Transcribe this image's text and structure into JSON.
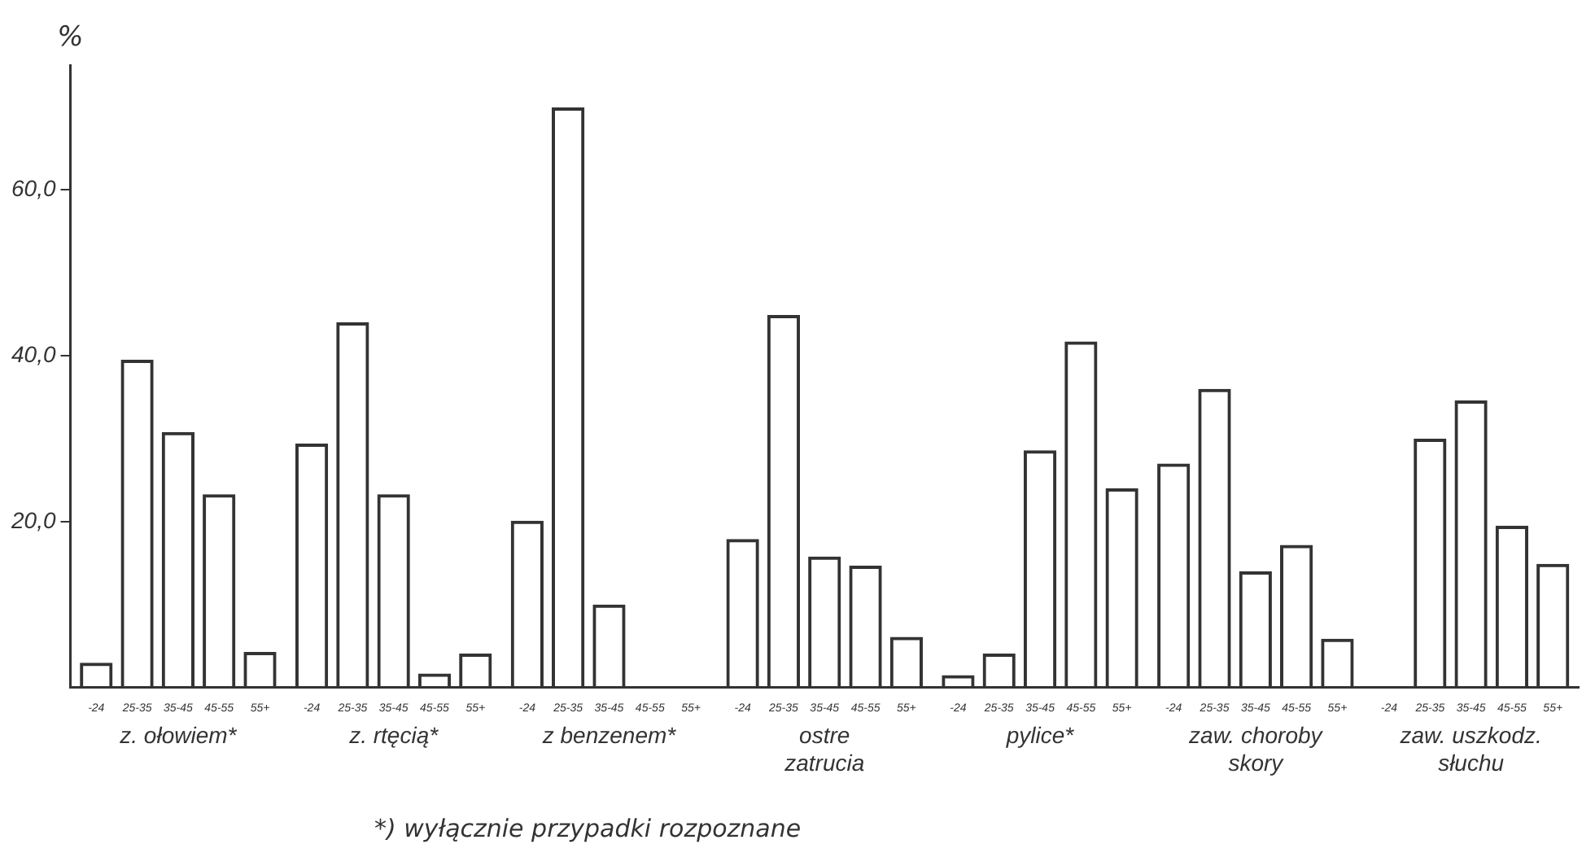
{
  "chart_data": {
    "type": "bar",
    "ylabel": "%",
    "categories": [
      "z. ołowiem*",
      "z. rtęcią*",
      "z benzenem*",
      "ostre zatrucia",
      "pylice*",
      "zaw. choroby skory",
      "zaw. uszkodz. słuchu"
    ],
    "series": [
      {
        "name": "-24",
        "color": "#333333",
        "values": [
          3.0,
          29.4,
          20.1,
          17.9,
          1.5,
          27.0,
          0
        ]
      },
      {
        "name": "25-35",
        "color": "#333333",
        "values": [
          39.5,
          44.0,
          69.9,
          44.9,
          4.1,
          36.0,
          30.0
        ]
      },
      {
        "name": "35-45",
        "color": "#333333",
        "values": [
          30.8,
          23.3,
          10.0,
          15.8,
          28.6,
          14.0,
          34.6
        ]
      },
      {
        "name": "45-55",
        "color": "#333333",
        "values": [
          23.3,
          1.7,
          0,
          14.7,
          41.7,
          17.2,
          19.5
        ]
      },
      {
        "name": "55+",
        "color": "#333333",
        "values": [
          4.3,
          4.1,
          0,
          6.1,
          24.0,
          5.9,
          14.9
        ]
      }
    ],
    "ylim": [
      0,
      75
    ],
    "yticks": [
      {
        "value": 20,
        "label": "20,0"
      },
      {
        "value": 40,
        "label": "40,0"
      },
      {
        "value": 60,
        "label": "60,0"
      }
    ],
    "grid": false,
    "legend": false,
    "annotations": [
      "*) wyłącznie przypadki rozpoznane"
    ]
  }
}
